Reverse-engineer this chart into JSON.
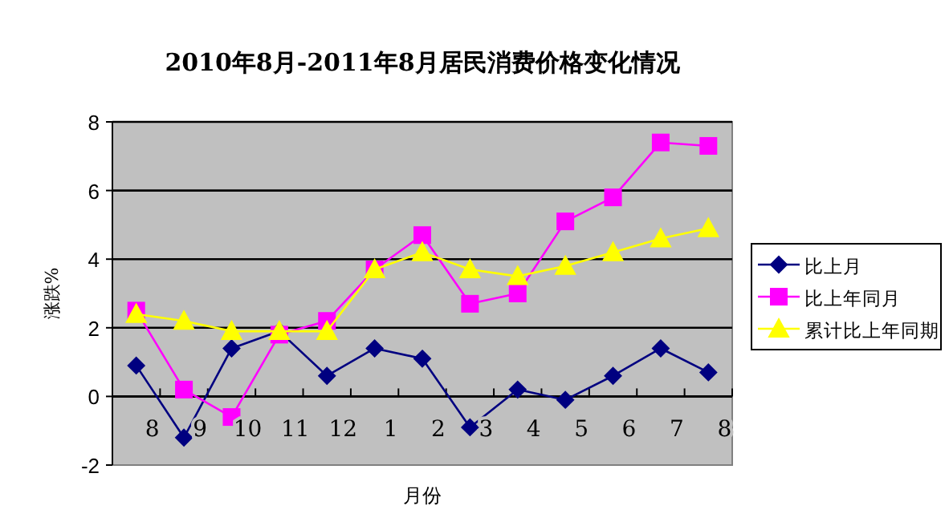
{
  "chart_data": {
    "type": "line",
    "title": "2010年8月-2011年8月居民消费价格变化情况",
    "xlabel": "月份",
    "ylabel": "涨跌%",
    "categories": [
      "8",
      "9",
      "10",
      "11",
      "12",
      "1",
      "2",
      "3",
      "4",
      "5",
      "6",
      "7",
      "8"
    ],
    "ylim": [
      -2,
      8
    ],
    "yticks": [
      -2,
      0,
      2,
      4,
      6,
      8
    ],
    "grid": "y",
    "legend": "right",
    "series": [
      {
        "name": "比上月",
        "color": "#000080",
        "marker": "diamond",
        "values": [
          0.9,
          -1.2,
          1.4,
          1.9,
          0.6,
          1.4,
          1.1,
          -0.9,
          0.2,
          -0.1,
          0.6,
          1.4,
          0.7
        ]
      },
      {
        "name": "比上年同月",
        "color": "#ff00ff",
        "marker": "square",
        "values": [
          2.5,
          0.2,
          -0.6,
          1.8,
          2.2,
          3.7,
          4.7,
          2.7,
          3.0,
          5.1,
          5.8,
          7.4,
          7.3
        ]
      },
      {
        "name": "累计比上年同期",
        "color": "#ffff00",
        "marker": "triangle",
        "values": [
          2.4,
          2.2,
          1.9,
          1.9,
          1.9,
          3.7,
          4.2,
          3.7,
          3.5,
          3.8,
          4.2,
          4.6,
          4.9
        ]
      }
    ]
  }
}
